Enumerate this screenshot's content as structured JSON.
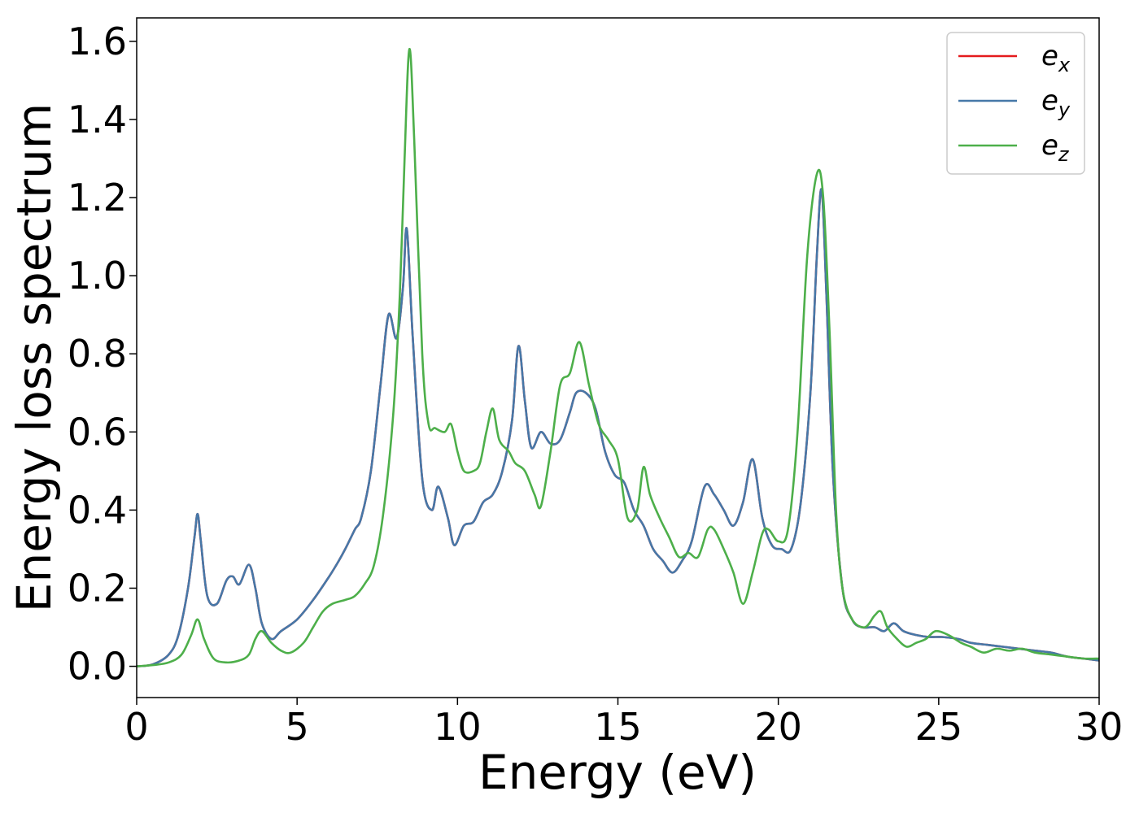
{
  "chart_data": {
    "type": "line",
    "title": "",
    "xlabel": "Energy (eV)",
    "ylabel": "Energy loss spectrum",
    "xlim": [
      0,
      30
    ],
    "ylim": [
      -0.08,
      1.66
    ],
    "x_ticks": [
      0,
      5,
      10,
      15,
      20,
      25,
      30
    ],
    "x_tick_labels": [
      "0",
      "5",
      "10",
      "15",
      "20",
      "25",
      "30"
    ],
    "y_ticks": [
      0.0,
      0.2,
      0.4,
      0.6,
      0.8,
      1.0,
      1.2,
      1.4,
      1.6
    ],
    "y_tick_labels": [
      "0.0",
      "0.2",
      "0.4",
      "0.6",
      "0.8",
      "1.0",
      "1.2",
      "1.4",
      "1.6"
    ],
    "grid": false,
    "legend_position": "top-right",
    "series": [
      {
        "name": "e_x",
        "label_main": "e",
        "label_sub": "x",
        "color": "#e41a1c",
        "x": [
          0,
          0.5,
          1,
          1.3,
          1.6,
          1.8,
          1.9,
          2.0,
          2.2,
          2.5,
          2.8,
          3.0,
          3.2,
          3.5,
          3.7,
          3.9,
          4.2,
          4.5,
          5,
          5.5,
          6,
          6.3,
          6.5,
          6.8,
          7,
          7.3,
          7.6,
          7.85,
          8.1,
          8.3,
          8.42,
          8.6,
          8.9,
          9.2,
          9.4,
          9.7,
          9.9,
          10.2,
          10.5,
          10.8,
          11.1,
          11.4,
          11.7,
          11.9,
          12.1,
          12.3,
          12.6,
          12.9,
          13.2,
          13.5,
          13.7,
          14,
          14.3,
          14.6,
          14.9,
          15.2,
          15.5,
          15.8,
          16.1,
          16.4,
          16.7,
          17,
          17.3,
          17.7,
          18,
          18.3,
          18.6,
          18.9,
          19.2,
          19.5,
          19.8,
          20.1,
          20.4,
          20.7,
          21,
          21.2,
          21.35,
          21.5,
          21.7,
          22,
          22.3,
          22.6,
          23,
          23.3,
          23.6,
          23.9,
          24.3,
          24.7,
          25.1,
          25.6,
          26,
          26.5,
          27,
          27.5,
          28,
          28.5,
          29,
          29.5,
          30
        ],
        "y": [
          0,
          0.005,
          0.03,
          0.08,
          0.2,
          0.33,
          0.39,
          0.32,
          0.18,
          0.16,
          0.22,
          0.23,
          0.21,
          0.26,
          0.2,
          0.11,
          0.07,
          0.09,
          0.12,
          0.17,
          0.23,
          0.27,
          0.3,
          0.35,
          0.38,
          0.5,
          0.72,
          0.9,
          0.84,
          0.97,
          1.12,
          0.85,
          0.48,
          0.4,
          0.46,
          0.38,
          0.31,
          0.36,
          0.37,
          0.42,
          0.44,
          0.5,
          0.63,
          0.82,
          0.68,
          0.56,
          0.6,
          0.57,
          0.58,
          0.65,
          0.7,
          0.7,
          0.66,
          0.55,
          0.49,
          0.47,
          0.4,
          0.36,
          0.3,
          0.27,
          0.24,
          0.27,
          0.32,
          0.46,
          0.44,
          0.4,
          0.36,
          0.42,
          0.53,
          0.38,
          0.31,
          0.3,
          0.3,
          0.42,
          0.7,
          1.05,
          1.22,
          0.95,
          0.5,
          0.2,
          0.12,
          0.1,
          0.1,
          0.09,
          0.11,
          0.09,
          0.08,
          0.075,
          0.075,
          0.07,
          0.06,
          0.055,
          0.05,
          0.045,
          0.04,
          0.035,
          0.025,
          0.02,
          0.015
        ]
      },
      {
        "name": "e_y",
        "label_main": "e",
        "label_sub": "y",
        "color": "#4678a8",
        "x": [
          0,
          0.5,
          1,
          1.3,
          1.6,
          1.8,
          1.9,
          2.0,
          2.2,
          2.5,
          2.8,
          3.0,
          3.2,
          3.5,
          3.7,
          3.9,
          4.2,
          4.5,
          5,
          5.5,
          6,
          6.3,
          6.5,
          6.8,
          7,
          7.3,
          7.6,
          7.85,
          8.1,
          8.3,
          8.42,
          8.6,
          8.9,
          9.2,
          9.4,
          9.7,
          9.9,
          10.2,
          10.5,
          10.8,
          11.1,
          11.4,
          11.7,
          11.9,
          12.1,
          12.3,
          12.6,
          12.9,
          13.2,
          13.5,
          13.7,
          14,
          14.3,
          14.6,
          14.9,
          15.2,
          15.5,
          15.8,
          16.1,
          16.4,
          16.7,
          17,
          17.3,
          17.7,
          18,
          18.3,
          18.6,
          18.9,
          19.2,
          19.5,
          19.8,
          20.1,
          20.4,
          20.7,
          21,
          21.2,
          21.35,
          21.5,
          21.7,
          22,
          22.3,
          22.6,
          23,
          23.3,
          23.6,
          23.9,
          24.3,
          24.7,
          25.1,
          25.6,
          26,
          26.5,
          27,
          27.5,
          28,
          28.5,
          29,
          29.5,
          30
        ],
        "y": [
          0,
          0.005,
          0.03,
          0.08,
          0.2,
          0.33,
          0.39,
          0.32,
          0.18,
          0.16,
          0.22,
          0.23,
          0.21,
          0.26,
          0.2,
          0.11,
          0.07,
          0.09,
          0.12,
          0.17,
          0.23,
          0.27,
          0.3,
          0.35,
          0.38,
          0.5,
          0.72,
          0.9,
          0.84,
          0.97,
          1.12,
          0.85,
          0.48,
          0.4,
          0.46,
          0.38,
          0.31,
          0.36,
          0.37,
          0.42,
          0.44,
          0.5,
          0.63,
          0.82,
          0.68,
          0.56,
          0.6,
          0.57,
          0.58,
          0.65,
          0.7,
          0.7,
          0.66,
          0.55,
          0.49,
          0.47,
          0.4,
          0.36,
          0.3,
          0.27,
          0.24,
          0.27,
          0.32,
          0.46,
          0.44,
          0.4,
          0.36,
          0.42,
          0.53,
          0.38,
          0.31,
          0.3,
          0.3,
          0.42,
          0.7,
          1.05,
          1.22,
          0.95,
          0.5,
          0.2,
          0.12,
          0.1,
          0.1,
          0.09,
          0.11,
          0.09,
          0.08,
          0.075,
          0.075,
          0.07,
          0.06,
          0.055,
          0.05,
          0.045,
          0.04,
          0.035,
          0.025,
          0.02,
          0.015
        ]
      },
      {
        "name": "e_z",
        "label_main": "e",
        "label_sub": "z",
        "color": "#4daf4a",
        "x": [
          0,
          0.5,
          1,
          1.4,
          1.7,
          1.9,
          2.1,
          2.4,
          2.8,
          3.2,
          3.5,
          3.7,
          3.9,
          4.2,
          4.5,
          4.8,
          5.2,
          5.5,
          5.8,
          6.1,
          6.5,
          6.8,
          7.1,
          7.4,
          7.7,
          8,
          8.2,
          8.35,
          8.5,
          8.65,
          8.9,
          9.1,
          9.3,
          9.6,
          9.8,
          10.0,
          10.2,
          10.5,
          10.7,
          10.9,
          11.1,
          11.3,
          11.6,
          11.8,
          12.1,
          12.4,
          12.6,
          12.9,
          13.2,
          13.5,
          13.8,
          14.1,
          14.4,
          14.7,
          15,
          15.3,
          15.6,
          15.8,
          16,
          16.3,
          16.6,
          16.9,
          17.2,
          17.5,
          17.8,
          18,
          18.3,
          18.6,
          18.9,
          19.2,
          19.5,
          19.7,
          20,
          20.3,
          20.6,
          20.9,
          21.2,
          21.4,
          21.6,
          21.8,
          22,
          22.3,
          22.7,
          23.0,
          23.2,
          23.4,
          23.7,
          24,
          24.3,
          24.6,
          24.9,
          25.3,
          25.7,
          26,
          26.4,
          26.8,
          27.2,
          27.6,
          28,
          28.5,
          29,
          29.5,
          30
        ],
        "y": [
          0,
          0.003,
          0.01,
          0.03,
          0.08,
          0.12,
          0.07,
          0.02,
          0.01,
          0.015,
          0.03,
          0.07,
          0.09,
          0.06,
          0.04,
          0.035,
          0.06,
          0.1,
          0.14,
          0.16,
          0.17,
          0.18,
          0.21,
          0.26,
          0.4,
          0.65,
          0.95,
          1.3,
          1.58,
          1.35,
          0.8,
          0.62,
          0.61,
          0.6,
          0.62,
          0.55,
          0.5,
          0.5,
          0.52,
          0.6,
          0.66,
          0.58,
          0.55,
          0.52,
          0.5,
          0.44,
          0.41,
          0.55,
          0.72,
          0.75,
          0.83,
          0.72,
          0.62,
          0.58,
          0.53,
          0.38,
          0.4,
          0.51,
          0.44,
          0.38,
          0.33,
          0.28,
          0.29,
          0.28,
          0.35,
          0.35,
          0.3,
          0.24,
          0.16,
          0.24,
          0.34,
          0.35,
          0.32,
          0.35,
          0.6,
          1.05,
          1.26,
          1.2,
          0.85,
          0.4,
          0.2,
          0.12,
          0.1,
          0.13,
          0.14,
          0.1,
          0.07,
          0.05,
          0.06,
          0.07,
          0.09,
          0.08,
          0.06,
          0.05,
          0.035,
          0.045,
          0.04,
          0.045,
          0.035,
          0.03,
          0.025,
          0.02,
          0.02
        ]
      }
    ]
  }
}
